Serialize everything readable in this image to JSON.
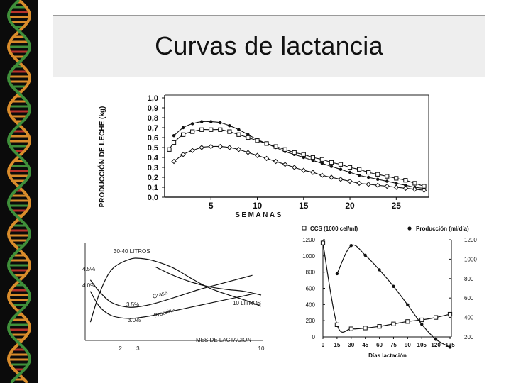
{
  "slide": {
    "title": "Curvas de lactancia"
  },
  "colors": {
    "ink": "#111111",
    "dna_bg": "#0b0b0b",
    "dna_warm": "#d98c2b",
    "dna_green": "#3f8f3a",
    "dna_red": "#b8342b",
    "title_bg": "#eeeeee"
  },
  "chart_data": [
    {
      "type": "line",
      "ylabel": "PRODUCCIÓN DE LECHE (kg)",
      "xlabel": "SEMANAS",
      "xlim": [
        0,
        28.5
      ],
      "ylim": [
        0,
        1.0
      ],
      "xticks": [
        5,
        10,
        15,
        20,
        25
      ],
      "xtick_labels": [
        "5",
        "10",
        "15",
        "20",
        "25"
      ],
      "yticks": [
        0,
        0.1,
        0.2,
        0.3,
        0.4,
        0.5,
        0.6,
        0.7,
        0.8,
        0.9,
        1.0
      ],
      "ytick_labels": [
        "0,0",
        "0,1",
        "0,2",
        "0,3",
        "0,4",
        "0,5",
        "0,6",
        "0,7",
        "0,8",
        "0,9",
        "1,0"
      ],
      "series": [
        {
          "name": "curva superior (puntos)",
          "marker": "dot",
          "x": [
            1,
            2,
            3,
            4,
            5,
            6,
            7,
            8,
            9,
            10,
            11,
            12,
            13,
            14,
            15,
            16,
            17,
            18,
            19,
            20,
            21,
            22,
            23,
            24,
            25,
            26,
            27,
            28
          ],
          "y": [
            0.62,
            0.7,
            0.74,
            0.76,
            0.76,
            0.75,
            0.72,
            0.68,
            0.63,
            0.58,
            0.54,
            0.5,
            0.46,
            0.43,
            0.4,
            0.37,
            0.34,
            0.31,
            0.28,
            0.25,
            0.22,
            0.2,
            0.18,
            0.16,
            0.14,
            0.12,
            0.1,
            0.09
          ]
        },
        {
          "name": "curva media (cuadrados)",
          "marker": "square",
          "x": [
            0.5,
            1,
            2,
            3,
            4,
            5,
            6,
            7,
            8,
            9,
            10,
            11,
            12,
            13,
            14,
            15,
            16,
            17,
            18,
            19,
            20,
            21,
            22,
            23,
            24,
            25,
            26,
            27,
            28
          ],
          "y": [
            0.48,
            0.55,
            0.63,
            0.66,
            0.68,
            0.68,
            0.68,
            0.66,
            0.63,
            0.6,
            0.57,
            0.54,
            0.51,
            0.48,
            0.45,
            0.43,
            0.4,
            0.38,
            0.35,
            0.33,
            0.3,
            0.28,
            0.25,
            0.23,
            0.21,
            0.19,
            0.17,
            0.14,
            0.11
          ]
        },
        {
          "name": "curva inferior (rombos)",
          "marker": "diamond",
          "x": [
            1,
            2,
            3,
            4,
            5,
            6,
            7,
            8,
            9,
            10,
            11,
            12,
            13,
            14,
            15,
            16,
            17,
            18,
            19,
            20,
            21,
            22,
            23,
            24,
            25,
            26,
            27,
            28
          ],
          "y": [
            0.36,
            0.43,
            0.47,
            0.5,
            0.51,
            0.51,
            0.5,
            0.48,
            0.45,
            0.42,
            0.39,
            0.36,
            0.33,
            0.3,
            0.27,
            0.25,
            0.22,
            0.2,
            0.18,
            0.16,
            0.14,
            0.13,
            0.12,
            0.11,
            0.1,
            0.09,
            0.08,
            0.07
          ]
        }
      ]
    },
    {
      "type": "line",
      "xlabel": "MES DE LACTACION",
      "xlim": [
        0,
        10
      ],
      "xticks": [
        2,
        3,
        10
      ],
      "xtick_labels": [
        "2",
        "3",
        "10"
      ],
      "yrange": [
        0,
        10
      ],
      "annotations": [
        "30-40 LITROS",
        "10 LITROS",
        "4.5%",
        "4.0%",
        "3.5%",
        "3.0%",
        "Grasa",
        "Proteína"
      ],
      "series": [
        {
          "name": "30-40 LITROS",
          "x": [
            0.3,
            0.8,
            1.5,
            2.5,
            3.2,
            4.0,
            5.0,
            6.0,
            7.0,
            8.0,
            9.0,
            10.0
          ],
          "y": [
            1.8,
            4.8,
            7.4,
            8.5,
            8.6,
            8.3,
            7.6,
            6.5,
            5.5,
            4.8,
            4.2,
            3.5
          ]
        },
        {
          "name": "Grasa (4.5%)",
          "x": [
            0.3,
            0.8,
            1.5,
            2.5,
            3.5,
            4.5,
            5.5,
            6.5,
            7.5,
            8.5,
            9.5
          ],
          "y": [
            6.3,
            5.1,
            3.9,
            3.4,
            3.6,
            4.1,
            4.7,
            5.3,
            5.8,
            6.3,
            6.8
          ]
        },
        {
          "name": "Proteína (4.0%)",
          "x": [
            0.3,
            0.8,
            1.5,
            2.5,
            3.5,
            4.5,
            5.5,
            6.5,
            7.5,
            8.5,
            9.5
          ],
          "y": [
            5.1,
            3.5,
            2.5,
            2.2,
            2.4,
            2.8,
            3.2,
            3.6,
            4.0,
            4.4,
            4.8
          ]
        },
        {
          "name": "10 LITROS",
          "x": [
            4.0,
            5.0,
            6.0,
            7.0,
            8.0,
            9.0,
            10.0
          ],
          "y": [
            7.7,
            6.8,
            6.1,
            5.6,
            5.3,
            5.1,
            4.7
          ]
        }
      ]
    },
    {
      "type": "line",
      "xlabel": "Días lactación",
      "xlim": [
        0,
        135
      ],
      "xticks": [
        0,
        15,
        30,
        45,
        60,
        75,
        90,
        105,
        120,
        135
      ],
      "xtick_labels": [
        "0",
        "15",
        "30",
        "45",
        "60",
        "75",
        "90",
        "105",
        "120",
        "135"
      ],
      "ylim_left": [
        0,
        1200
      ],
      "yticks_left": [
        0,
        200,
        400,
        600,
        800,
        1000,
        1200
      ],
      "ytick_labels_left": [
        "0",
        "200",
        "400",
        "600",
        "800",
        "1000",
        "1200"
      ],
      "ylim_right": [
        200,
        1200
      ],
      "yticks_right": [
        200,
        400,
        600,
        800,
        1000,
        1200
      ],
      "ytick_labels_right": [
        "200",
        "400",
        "600",
        "800",
        "1000",
        "1200"
      ],
      "series": [
        {
          "name": "CCS (1000 cel/ml)",
          "axis": "left",
          "marker": "square",
          "x": [
            0,
            15,
            30,
            45,
            60,
            75,
            90,
            105,
            120,
            135
          ],
          "y": [
            1160,
            150,
            100,
            110,
            130,
            160,
            190,
            210,
            240,
            280
          ]
        },
        {
          "name": "Producción (ml/día)",
          "axis": "right",
          "marker": "dot",
          "x": [
            15,
            30,
            45,
            60,
            75,
            90,
            105,
            120,
            135
          ],
          "y": [
            850,
            1140,
            1040,
            890,
            720,
            530,
            330,
            175,
            95
          ]
        }
      ]
    }
  ]
}
